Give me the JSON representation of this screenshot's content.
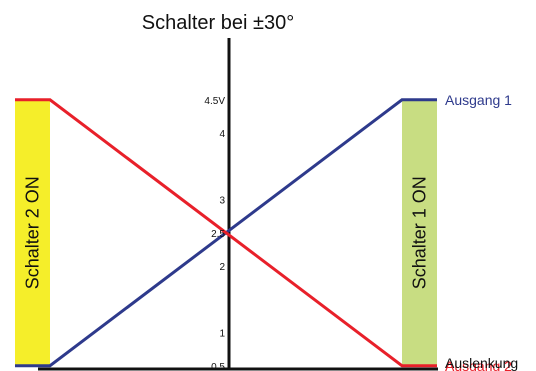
{
  "chart_data": {
    "type": "line",
    "title": "Schalter bei  ±30°",
    "xlabel": "Auslenkung",
    "ylabel": "",
    "xlim": [
      -30,
      30
    ],
    "ylim": [
      0,
      5
    ],
    "y_ticks": [
      {
        "value": 0.5,
        "label": "0.5"
      },
      {
        "value": 1,
        "label": "1"
      },
      {
        "value": 2,
        "label": "2"
      },
      {
        "value": 2.5,
        "label": "2.5"
      },
      {
        "value": 3,
        "label": "3"
      },
      {
        "value": 4,
        "label": "4"
      },
      {
        "value": 4.5,
        "label": "4.5V"
      }
    ],
    "series": [
      {
        "name": "Ausgang 1",
        "color": "#2e3a8c",
        "x": [
          -30,
          30
        ],
        "y": [
          0.5,
          4.5
        ]
      },
      {
        "name": "Ausgang 2",
        "color": "#e8202a",
        "x": [
          -30,
          30
        ],
        "y": [
          4.5,
          0.5
        ]
      }
    ],
    "bands": [
      {
        "label": "Schalter 2 ON",
        "color": "#f5ee2a",
        "side": "left"
      },
      {
        "label": "Schalter 1 ON",
        "color": "#c8dd82",
        "side": "right"
      }
    ],
    "grid": false,
    "legend": "inline-right"
  }
}
